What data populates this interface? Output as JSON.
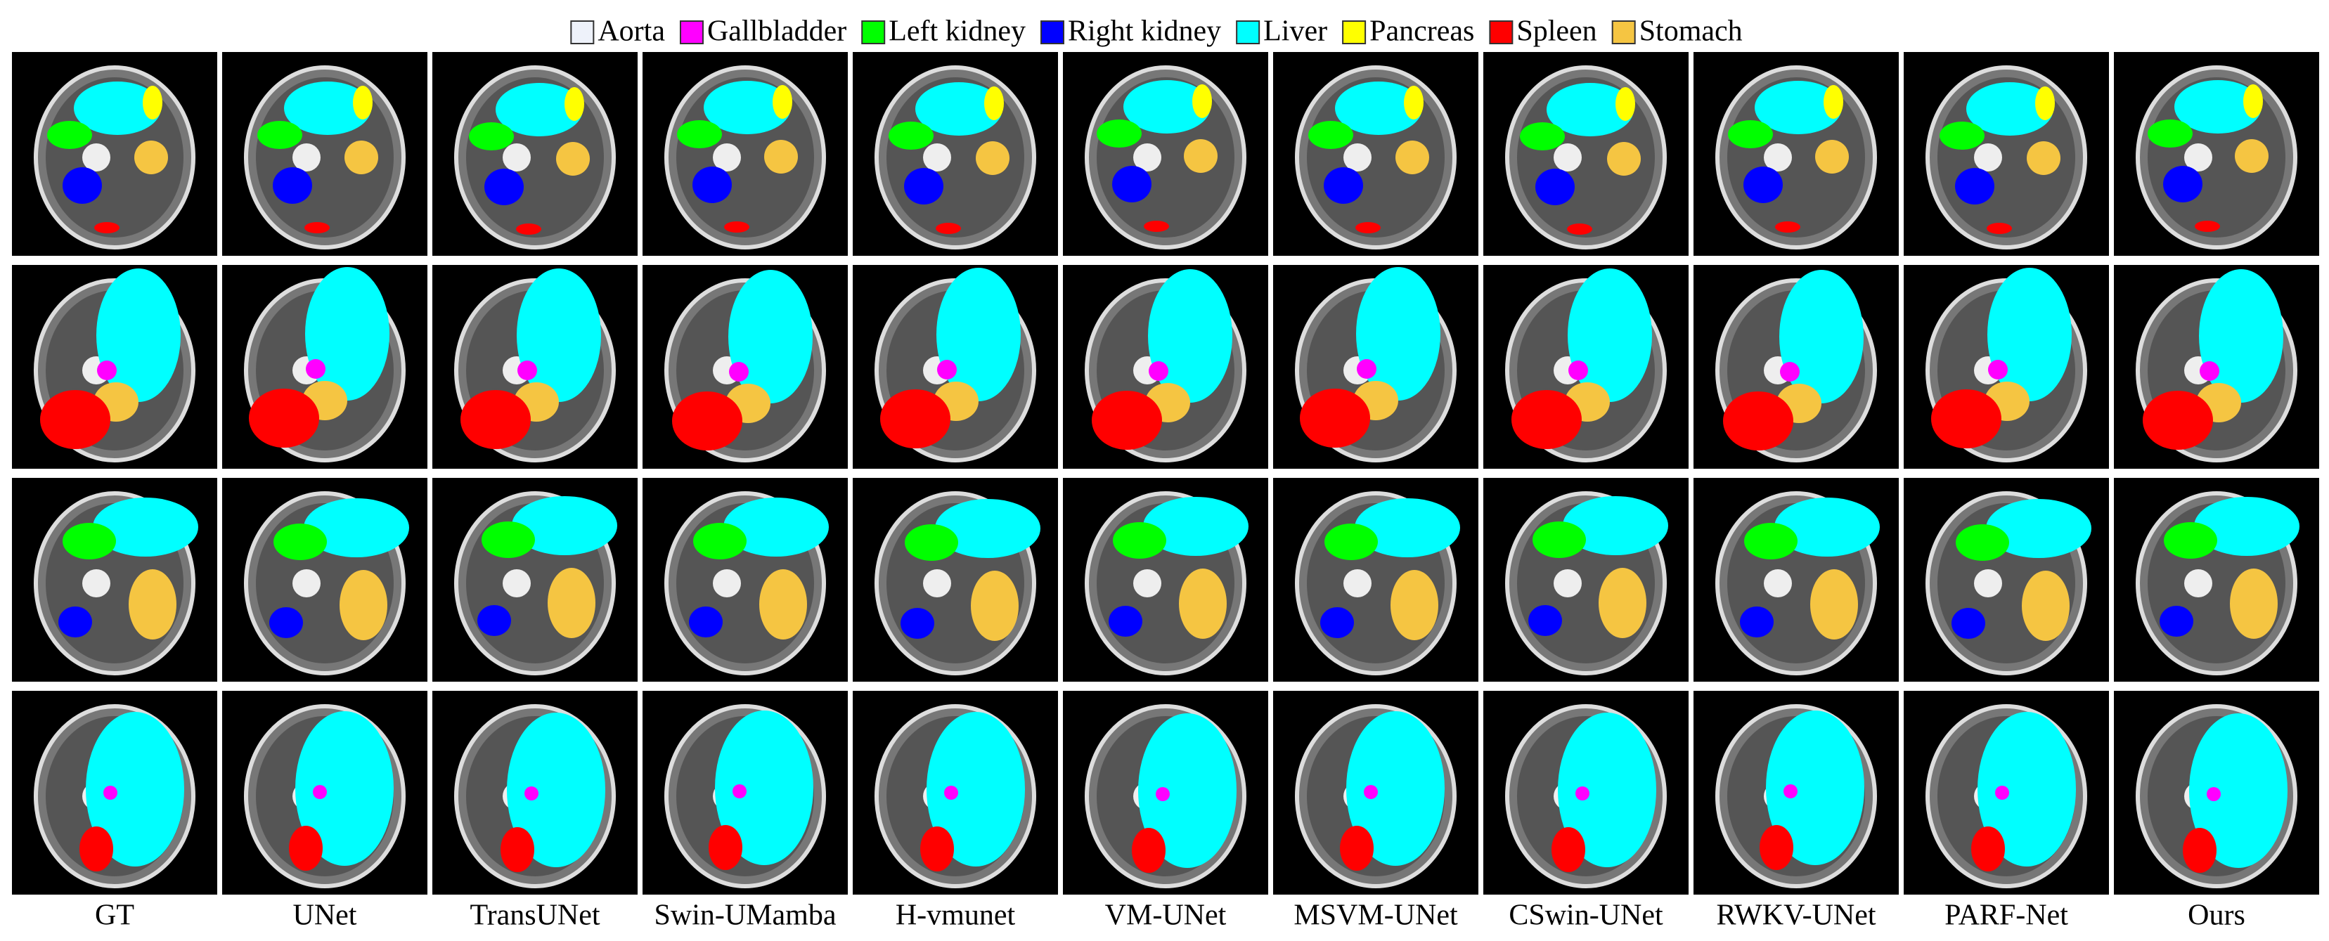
{
  "legend": [
    {
      "label": "Aorta",
      "color": "#eef2fa"
    },
    {
      "label": "Gallbladder",
      "color": "#ff00ff"
    },
    {
      "label": "Left kidney",
      "color": "#00ff00"
    },
    {
      "label": "Right kidney",
      "color": "#0000ff"
    },
    {
      "label": "Liver",
      "color": "#00ffff"
    },
    {
      "label": "Pancreas",
      "color": "#ffff00"
    },
    {
      "label": "Spleen",
      "color": "#ff0000"
    },
    {
      "label": "Stomach",
      "color": "#f5c542"
    }
  ],
  "columns": [
    "GT",
    "UNet",
    "TransUNet",
    "Swin-UMamba",
    "H-vmunet",
    "VM-UNet",
    "MSVM-UNet",
    "CSwin-UNet",
    "RWKV-UNet",
    "PARF-Net",
    "Ours"
  ]
}
